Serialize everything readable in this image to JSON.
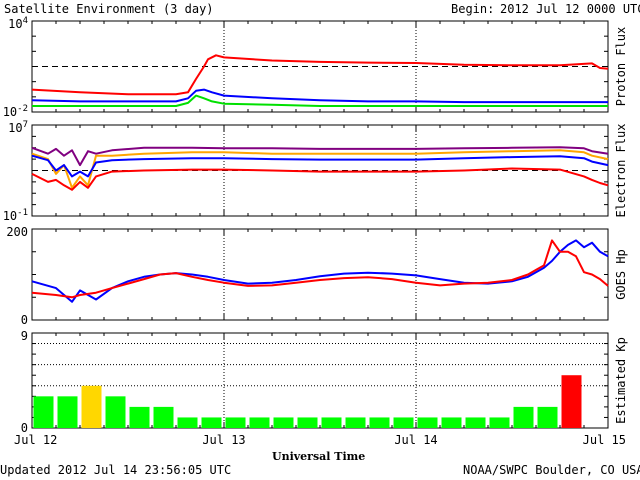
{
  "header": {
    "title": "Satellite Environment (3 day)",
    "begin_label": "Begin:",
    "begin_value": "2012 Jul 12 0000 UTC"
  },
  "footer": {
    "updated": "Updated 2012 Jul 14 23:56:05 UTC",
    "credit": "NOAA/SWPC Boulder, CO USA"
  },
  "x_axis": {
    "label": "Universal Time",
    "ticks": [
      "Jul 12",
      "Jul 13",
      "Jul 14",
      "Jul 15"
    ]
  },
  "chart_data": [
    {
      "type": "line",
      "name": "Proton Flux",
      "ylabel": "Proton Flux",
      "y_scale": "log",
      "ylim": [
        0.01,
        10000
      ],
      "y_tick_labels": [
        "10^-2",
        "10^4"
      ],
      "threshold": 10,
      "x_unit": "hours since Jul 12 00:00 UTC",
      "series": [
        {
          "color": "#ff0000",
          "x": [
            0,
            6,
            12,
            18,
            19.5,
            20.5,
            21.5,
            22,
            23,
            24,
            30,
            36,
            42,
            48,
            54,
            60,
            66,
            70,
            71,
            72
          ],
          "y": [
            0.3,
            0.2,
            0.15,
            0.15,
            0.2,
            1.5,
            10,
            30,
            55,
            40,
            25,
            20,
            18,
            17,
            13,
            12,
            12,
            16,
            8,
            7
          ]
        },
        {
          "color": "#0000ff",
          "x": [
            0,
            6,
            12,
            18,
            19.5,
            20.5,
            21.5,
            22.5,
            24,
            30,
            36,
            42,
            48,
            54,
            60,
            66,
            72
          ],
          "y": [
            0.06,
            0.05,
            0.05,
            0.05,
            0.08,
            0.25,
            0.3,
            0.2,
            0.12,
            0.08,
            0.06,
            0.05,
            0.05,
            0.045,
            0.045,
            0.045,
            0.045
          ]
        },
        {
          "color": "#00e000",
          "x": [
            0,
            6,
            12,
            18,
            19.5,
            20.5,
            21.5,
            22.5,
            24,
            30,
            36,
            48,
            60,
            72
          ],
          "y": [
            0.025,
            0.025,
            0.025,
            0.025,
            0.04,
            0.12,
            0.08,
            0.05,
            0.035,
            0.03,
            0.025,
            0.025,
            0.025,
            0.025
          ]
        }
      ]
    },
    {
      "type": "line",
      "name": "Electron Flux",
      "ylabel": "Electron Flux",
      "y_scale": "log",
      "ylim": [
        0.1,
        10000000
      ],
      "y_tick_labels": [
        "10^-1",
        "10^7"
      ],
      "threshold": 1000,
      "x_unit": "hours since Jul 12 00:00 UTC",
      "series": [
        {
          "color": "#800080",
          "x": [
            0,
            2,
            3,
            4,
            5,
            6,
            7,
            8,
            10,
            14,
            20,
            24,
            30,
            36,
            42,
            48,
            54,
            60,
            66,
            69,
            70,
            72
          ],
          "y": [
            100000,
            30000,
            80000,
            20000,
            60000,
            3000,
            50000,
            30000,
            60000,
            100000,
            100000,
            90000,
            90000,
            80000,
            80000,
            80000,
            90000,
            100000,
            110000,
            90000,
            50000,
            30000
          ]
        },
        {
          "color": "#ffa500",
          "x": [
            0,
            2,
            3,
            4,
            5,
            6,
            7,
            8,
            10,
            14,
            20,
            24,
            30,
            36,
            42,
            48,
            54,
            60,
            66,
            69,
            70,
            72
          ],
          "y": [
            30000,
            10000,
            500,
            3000,
            30,
            300,
            50,
            20000,
            20000,
            30000,
            40000,
            40000,
            30000,
            30000,
            30000,
            30000,
            40000,
            50000,
            60000,
            40000,
            20000,
            10000
          ]
        },
        {
          "color": "#0000ff",
          "x": [
            0,
            2,
            3,
            4,
            5,
            6,
            7,
            8,
            10,
            14,
            20,
            24,
            30,
            36,
            42,
            48,
            54,
            60,
            66,
            69,
            70,
            72
          ],
          "y": [
            20000,
            8000,
            1000,
            3000,
            300,
            800,
            300,
            5000,
            8000,
            10000,
            12000,
            12000,
            10000,
            9000,
            9000,
            9000,
            12000,
            15000,
            18000,
            12000,
            6000,
            3000
          ]
        },
        {
          "color": "#ff0000",
          "x": [
            0,
            2,
            3,
            4,
            5,
            6,
            7,
            8,
            10,
            14,
            20,
            24,
            30,
            36,
            42,
            48,
            54,
            60,
            66,
            69,
            70,
            71,
            72
          ],
          "y": [
            500,
            100,
            150,
            50,
            20,
            100,
            30,
            300,
            800,
            1000,
            1200,
            1200,
            1000,
            800,
            800,
            800,
            1000,
            1500,
            1200,
            300,
            150,
            80,
            50
          ]
        }
      ]
    },
    {
      "type": "line",
      "name": "GOES Hp",
      "ylabel": "GOES Hp",
      "y_scale": "linear",
      "ylim": [
        0,
        200
      ],
      "y_tick_labels": [
        "0",
        "200"
      ],
      "x_unit": "hours since Jul 12 00:00 UTC",
      "series": [
        {
          "color": "#0000ff",
          "x": [
            0,
            3,
            5,
            6,
            8,
            10,
            12,
            14,
            16,
            18,
            20,
            22,
            24,
            27,
            30,
            33,
            36,
            39,
            42,
            45,
            48,
            51,
            54,
            57,
            60,
            62,
            64,
            65,
            66,
            67,
            68,
            69,
            70,
            71,
            72
          ],
          "y": [
            85,
            70,
            40,
            65,
            45,
            70,
            85,
            95,
            100,
            103,
            100,
            95,
            88,
            80,
            82,
            88,
            96,
            102,
            104,
            102,
            98,
            90,
            82,
            80,
            85,
            95,
            115,
            130,
            150,
            165,
            175,
            160,
            170,
            150,
            140
          ]
        },
        {
          "color": "#ff0000",
          "x": [
            0,
            3,
            5,
            6,
            8,
            10,
            12,
            14,
            16,
            18,
            20,
            22,
            24,
            27,
            30,
            33,
            36,
            39,
            42,
            45,
            48,
            51,
            54,
            57,
            60,
            62,
            63,
            64,
            65,
            66,
            67,
            68,
            69,
            70,
            71,
            72
          ],
          "y": [
            60,
            55,
            50,
            55,
            60,
            70,
            80,
            90,
            100,
            103,
            95,
            88,
            82,
            75,
            76,
            82,
            88,
            92,
            94,
            90,
            82,
            76,
            80,
            82,
            88,
            100,
            110,
            120,
            175,
            150,
            150,
            140,
            105,
            100,
            90,
            75
          ]
        }
      ]
    },
    {
      "type": "bar",
      "name": "Estimated Kp",
      "ylabel": "Estimated Kp",
      "ylim": [
        0,
        9
      ],
      "y_tick_labels": [
        "0",
        "9"
      ],
      "x_unit": "3-hour intervals starting Jul 12 00 UTC",
      "values": [
        3,
        3,
        4,
        3,
        2,
        2,
        1,
        1,
        1,
        1,
        1,
        1,
        1,
        1,
        1,
        1,
        1,
        1,
        1,
        1,
        2,
        2,
        5,
        0
      ],
      "colors": [
        "#00ff00",
        "#00ff00",
        "#ffd700",
        "#00ff00",
        "#00ff00",
        "#00ff00",
        "#00ff00",
        "#00ff00",
        "#00ff00",
        "#00ff00",
        "#00ff00",
        "#00ff00",
        "#00ff00",
        "#00ff00",
        "#00ff00",
        "#00ff00",
        "#00ff00",
        "#00ff00",
        "#00ff00",
        "#00ff00",
        "#00ff00",
        "#00ff00",
        "#ff0000",
        "#00ff00"
      ]
    }
  ]
}
